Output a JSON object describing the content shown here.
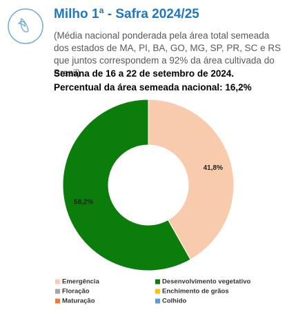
{
  "chart_data": {
    "type": "donut",
    "title": "Milho 1ª - Safra 2024/25",
    "subtitle": "(Média nacional ponderada pela área total semeada dos estados de MA, PI, BA, GO, MG, SP, PR, SC e RS que juntos correspondem a 92% da área cultivada do Brasil)",
    "week": "Semana de 16 a 22 de setembro de 2024.",
    "note": "Percentual da área semeada nacional: 16,2%",
    "categories": [
      "Emergência",
      "Desenvolvimento vegetativo",
      "Floração",
      "Enchimento de grãos",
      "Maturação",
      "Colhido"
    ],
    "values": [
      41.8,
      58.2,
      0,
      0,
      0,
      0
    ],
    "value_labels": [
      "41,8%",
      "58,2%",
      null,
      null,
      null,
      null
    ],
    "colors": [
      "#f8cbad",
      "#0a7d0a",
      "#a5a5a5",
      "#ffc000",
      "#ed7d31",
      "#5b9bd5"
    ]
  }
}
